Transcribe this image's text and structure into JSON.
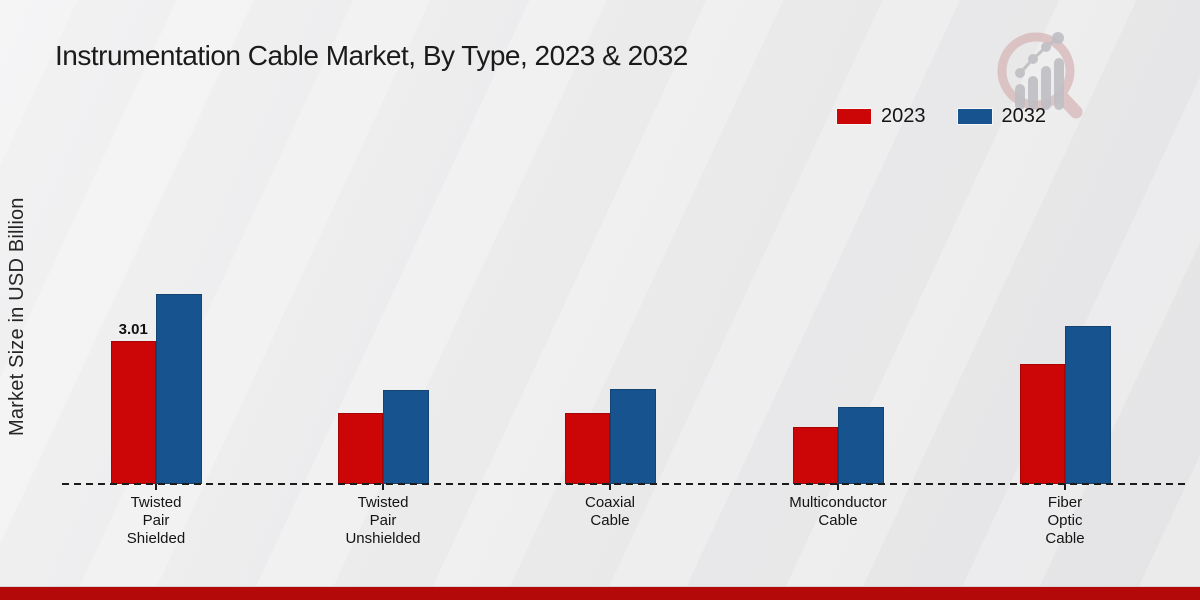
{
  "page": {
    "title": "Instrumentation Cable Market, By Type, 2023 & 2032"
  },
  "ylabel": "Market Size in USD Billion",
  "legend": {
    "items": [
      {
        "label": "2023",
        "color": "#cc0606"
      },
      {
        "label": "2032",
        "color": "#17538e"
      }
    ]
  },
  "logo": {
    "name": "market-research-magnifier-growth-logo"
  },
  "footer": {
    "accent_color": "#b30909"
  },
  "chart_data": {
    "type": "bar",
    "title": "Instrumentation Cable Market, By Type, 2023 & 2032",
    "xlabel": "",
    "ylabel": "Market Size in USD Billion",
    "unit": "USD Billion",
    "ylim": [
      0,
      4.2
    ],
    "grid": false,
    "legend_position": "top-right",
    "baseline_style": "dashed",
    "categories": [
      "Twisted Pair Shielded",
      "Twisted Pair Unshielded",
      "Coaxial Cable",
      "Multiconductor Cable",
      "Fiber Optic Cable"
    ],
    "category_label_lines": [
      [
        "Twisted",
        "Pair",
        "Shielded"
      ],
      [
        "Twisted",
        "Pair",
        "Unshielded"
      ],
      [
        "Coaxial",
        "Cable"
      ],
      [
        "Multiconductor",
        "Cable"
      ],
      [
        "Fiber",
        "Optic",
        "Cable"
      ]
    ],
    "series": [
      {
        "name": "2023",
        "color": "#cc0606",
        "values": [
          3.01,
          1.5,
          1.5,
          1.2,
          2.53
        ]
      },
      {
        "name": "2032",
        "color": "#17538e",
        "values": [
          4.0,
          1.97,
          2.0,
          1.63,
          3.32
        ]
      }
    ],
    "data_labels": [
      {
        "series": "2023",
        "category_index": 0,
        "text": "3.01"
      }
    ]
  }
}
